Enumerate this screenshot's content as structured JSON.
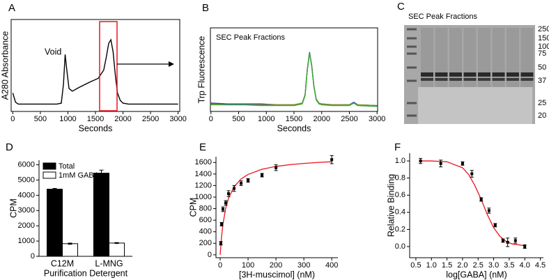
{
  "chart_data": [
    {
      "type": "line",
      "panel": "A",
      "xlabel": "Seconds",
      "ylabel": "A280 Absorbance",
      "annotations": [
        "Void"
      ],
      "frame": "box",
      "xlim": [
        -30,
        3030
      ],
      "ylim": [
        0,
        1
      ],
      "xticks": [
        0,
        500,
        1000,
        1500,
        2000,
        2500,
        3000
      ],
      "x": [
        0,
        50,
        100,
        200,
        400,
        600,
        800,
        880,
        920,
        950,
        980,
        1020,
        1080,
        1200,
        1400,
        1550,
        1650,
        1700,
        1740,
        1780,
        1820,
        1860,
        1900,
        1950,
        2000,
        2100,
        2300,
        2600,
        3000
      ],
      "series": [
        {
          "color": "#000000",
          "values": [
            0.2,
            0.1,
            0.08,
            0.08,
            0.08,
            0.08,
            0.08,
            0.09,
            0.3,
            0.62,
            0.45,
            0.25,
            0.22,
            0.26,
            0.32,
            0.36,
            0.45,
            0.6,
            0.74,
            0.78,
            0.65,
            0.4,
            0.2,
            0.12,
            0.09,
            0.08,
            0.08,
            0.08,
            0.08
          ]
        }
      ]
    },
    {
      "type": "line",
      "panel": "B",
      "title": "SEC Peak Fractions",
      "xlabel": "Seconds",
      "ylabel": "Trp Fluorescence",
      "frame": "box",
      "xlim": [
        -10,
        3010
      ],
      "ylim": [
        0,
        1
      ],
      "xticks": [
        0,
        500,
        1000,
        1500,
        2000,
        2500,
        3000
      ],
      "x": [
        0,
        300,
        600,
        900,
        1200,
        1500,
        1650,
        1700,
        1740,
        1780,
        1820,
        1860,
        1900,
        1950,
        2000,
        2200,
        2500,
        2580,
        2650,
        3000
      ],
      "series": [
        {
          "color": "#1f3fbf",
          "values": [
            0.1,
            0.09,
            0.09,
            0.09,
            0.08,
            0.08,
            0.1,
            0.2,
            0.5,
            0.71,
            0.55,
            0.3,
            0.15,
            0.1,
            0.09,
            0.08,
            0.08,
            0.11,
            0.08,
            0.07
          ]
        },
        {
          "color": "#8a8a1f",
          "values": [
            0.09,
            0.08,
            0.08,
            0.08,
            0.08,
            0.08,
            0.1,
            0.2,
            0.5,
            0.7,
            0.55,
            0.3,
            0.15,
            0.1,
            0.09,
            0.08,
            0.08,
            0.1,
            0.08,
            0.07
          ]
        },
        {
          "color": "#3aa63a",
          "values": [
            0.08,
            0.08,
            0.08,
            0.07,
            0.07,
            0.07,
            0.09,
            0.19,
            0.49,
            0.7,
            0.54,
            0.29,
            0.14,
            0.09,
            0.08,
            0.07,
            0.07,
            0.1,
            0.07,
            0.06
          ]
        }
      ]
    },
    {
      "type": "gel",
      "panel": "C",
      "title": "SEC Peak Fractions",
      "markers": [
        250,
        150,
        100,
        75,
        50,
        37,
        25,
        20
      ]
    },
    {
      "type": "bar",
      "panel": "D",
      "xlabel": "Purification Detergent",
      "ylabel": "CPM",
      "frame": "axes",
      "legend": "top-left",
      "categories": [
        "C12M",
        "L-MNG"
      ],
      "ylim": [
        0,
        6300
      ],
      "yticks": [
        0,
        1000,
        2000,
        3000,
        4000,
        5000,
        6000
      ],
      "series": [
        {
          "name": "Total",
          "color": "#000000",
          "values": [
            4400,
            5450
          ],
          "errors": [
            50,
            200
          ]
        },
        {
          "name": "1mM GABA",
          "color": "#ffffff",
          "values": [
            830,
            870
          ],
          "errors": [
            40,
            30
          ]
        }
      ]
    },
    {
      "type": "scatter",
      "panel": "E",
      "xlabel": "[3H-muscimol] (nM)",
      "ylabel": "CPM",
      "frame": "axes",
      "xlim": [
        -15,
        422
      ],
      "ylim": [
        -50,
        1700
      ],
      "xticks": [
        0,
        100,
        200,
        300,
        400
      ],
      "yticks": [
        0,
        200,
        400,
        600,
        800,
        1000,
        1200,
        1400,
        1600
      ],
      "series": [
        {
          "color": "#000000",
          "x": [
            2.5,
            5,
            10,
            20,
            30,
            50,
            75,
            100,
            150,
            200,
            400
          ],
          "values": [
            200,
            530,
            790,
            900,
            1060,
            1150,
            1240,
            1290,
            1380,
            1510,
            1650
          ],
          "errors": [
            30,
            30,
            40,
            40,
            50,
            50,
            40,
            30,
            30,
            50,
            70
          ]
        }
      ],
      "fit": {
        "color": "#e8141c",
        "x": [
          0,
          5,
          10,
          20,
          30,
          50,
          75,
          100,
          150,
          200,
          250,
          300,
          350,
          400
        ],
        "values": [
          0,
          315,
          531,
          810,
          981,
          1181,
          1314,
          1393,
          1483,
          1532,
          1563,
          1584,
          1600,
          1613
        ]
      }
    },
    {
      "type": "scatter",
      "panel": "F",
      "xlabel": "log[GABA] (nM)",
      "ylabel": "Relative Binding",
      "frame": "axes",
      "xlim": [
        0.3,
        4.6
      ],
      "ylim": [
        -0.13,
        1.09
      ],
      "xticks": [
        0.5,
        {
          "value": 1,
          "label": "1.0"
        },
        1.5,
        {
          "value": 2,
          "label": "2.0"
        },
        2.5,
        {
          "value": 3,
          "label": "3.0"
        },
        3.5,
        {
          "value": 4,
          "label": "4.0"
        },
        4.5
      ],
      "yticks": [
        {
          "value": 0,
          "label": "0.0"
        },
        0.2,
        0.4,
        0.6,
        0.8,
        {
          "value": 1,
          "label": "1.0"
        }
      ],
      "series": [
        {
          "color": "#000000",
          "x": [
            0.65,
            1.3,
            2.0,
            2.3,
            2.6,
            2.85,
            3.05,
            3.3,
            3.45,
            3.7,
            4.0
          ],
          "values": [
            1.0,
            0.97,
            0.97,
            0.85,
            0.55,
            0.42,
            0.25,
            0.07,
            0.05,
            0.07,
            0.0
          ],
          "errors": [
            0.03,
            0.04,
            0.02,
            0.04,
            0.02,
            0.03,
            0.02,
            0.02,
            0.05,
            0.03,
            0.02
          ]
        }
      ],
      "fit": {
        "color": "#e8141c",
        "x": [
          0.6,
          1.0,
          1.5,
          2.0,
          2.2,
          2.4,
          2.6,
          2.8,
          3.0,
          3.2,
          3.4,
          3.6,
          4.0
        ],
        "values": [
          1.0,
          1.0,
          0.99,
          0.92,
          0.84,
          0.71,
          0.55,
          0.37,
          0.22,
          0.12,
          0.06,
          0.03,
          0.01
        ]
      }
    }
  ]
}
